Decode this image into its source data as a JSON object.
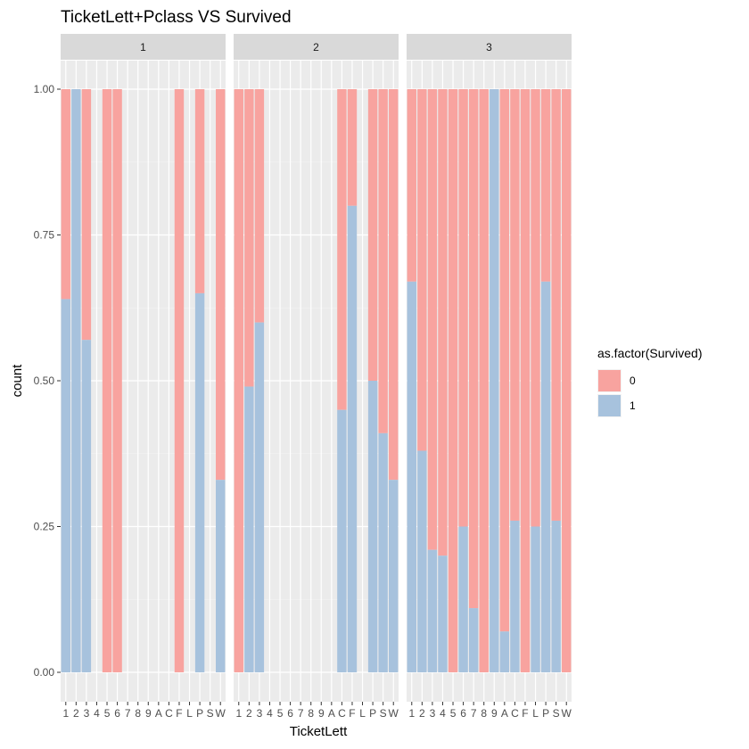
{
  "chart_data": {
    "type": "bar",
    "stacked": true,
    "title": "TicketLett+Pclass VS Survived",
    "xlabel": "TicketLett",
    "ylabel": "count",
    "ylim": [
      0,
      1
    ],
    "yticks": [
      "0.00",
      "0.25",
      "0.50",
      "0.75",
      "1.00"
    ],
    "categories": [
      "1",
      "2",
      "3",
      "4",
      "5",
      "6",
      "7",
      "8",
      "9",
      "A",
      "C",
      "F",
      "L",
      "P",
      "S",
      "W"
    ],
    "legend": {
      "title": "as.factor(Survived)",
      "placement": "right",
      "items": [
        {
          "label": "0",
          "color": "#F8A39F"
        },
        {
          "label": "1",
          "color": "#A7C2DD"
        }
      ]
    },
    "grid": true,
    "panels": [
      {
        "label": "1",
        "present": [
          1,
          1,
          1,
          0,
          1,
          1,
          0,
          0,
          0,
          0,
          0,
          1,
          0,
          1,
          0,
          1
        ],
        "survived_fraction": [
          0.64,
          1.0,
          0.57,
          null,
          0.0,
          0.0,
          null,
          null,
          null,
          null,
          null,
          0.0,
          null,
          0.65,
          null,
          0.33
        ]
      },
      {
        "label": "2",
        "present": [
          1,
          1,
          1,
          0,
          0,
          0,
          0,
          0,
          0,
          0,
          1,
          1,
          0,
          1,
          1,
          1
        ],
        "survived_fraction": [
          0.0,
          0.49,
          0.6,
          null,
          null,
          null,
          null,
          null,
          null,
          null,
          0.45,
          0.8,
          null,
          0.5,
          0.41,
          0.33
        ]
      },
      {
        "label": "3",
        "present": [
          1,
          1,
          1,
          1,
          1,
          1,
          1,
          1,
          1,
          1,
          1,
          1,
          1,
          1,
          1,
          1
        ],
        "survived_fraction": [
          0.67,
          0.38,
          0.21,
          0.2,
          0.0,
          0.25,
          0.11,
          0.0,
          1.0,
          0.07,
          0.26,
          0.0,
          0.25,
          0.67,
          0.26,
          0.0
        ]
      }
    ]
  }
}
